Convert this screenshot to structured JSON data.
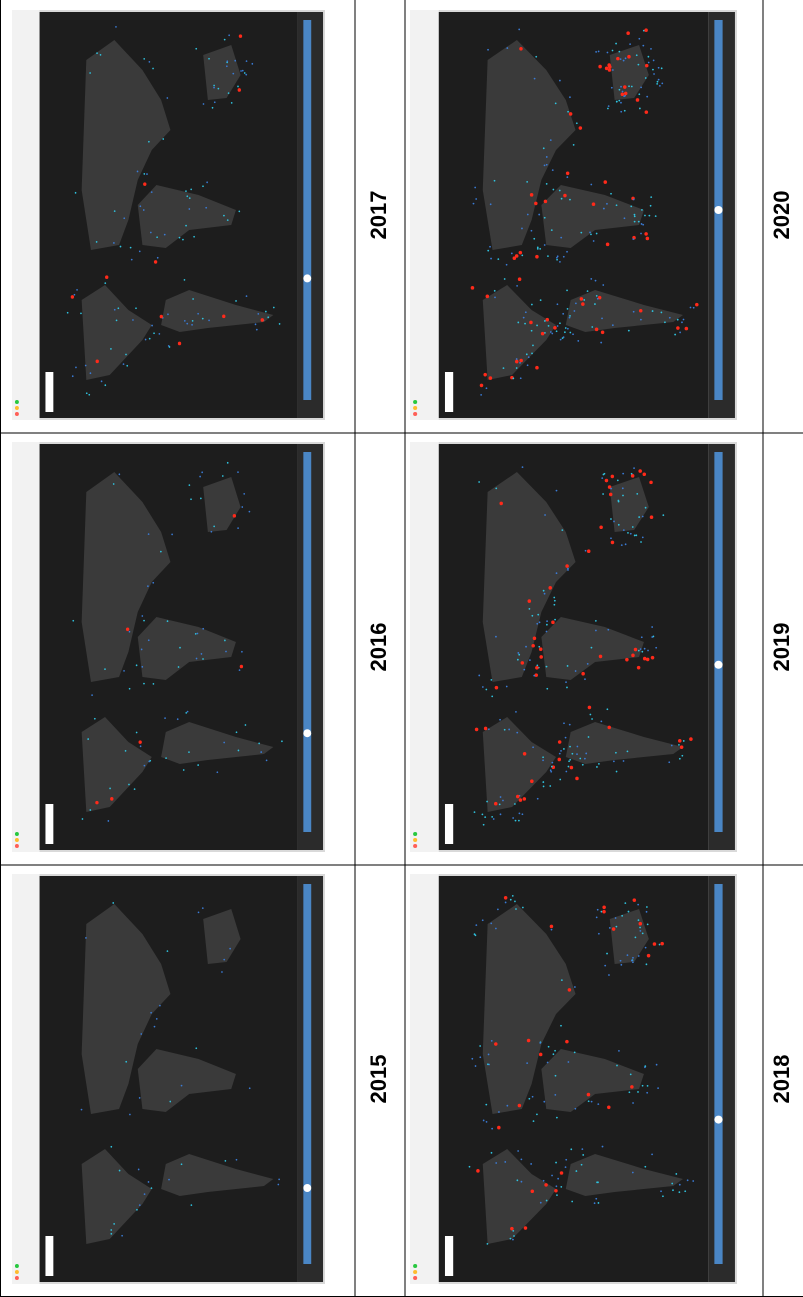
{
  "table": {
    "rows": [
      [
        "2017",
        "2020"
      ],
      [
        "2016",
        "2019"
      ],
      [
        "2015",
        "2018"
      ]
    ]
  }
}
